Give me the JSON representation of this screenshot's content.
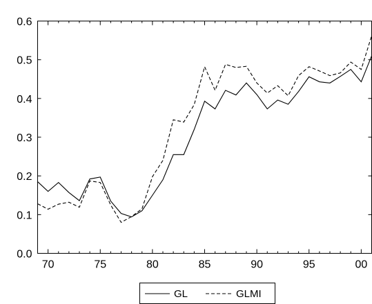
{
  "chart_data": {
    "type": "line",
    "title": "",
    "xlabel": "",
    "ylabel": "",
    "xlim": [
      1969,
      2001
    ],
    "ylim": [
      0.0,
      0.6
    ],
    "x_ticks": [
      1970,
      1975,
      1980,
      1985,
      1990,
      1995,
      2000
    ],
    "x_tick_labels": [
      "70",
      "75",
      "80",
      "85",
      "90",
      "95",
      "00"
    ],
    "y_ticks": [
      0.0,
      0.1,
      0.2,
      0.3,
      0.4,
      0.5,
      0.6
    ],
    "y_tick_labels": [
      "0.0",
      "0.1",
      "0.2",
      "0.3",
      "0.4",
      "0.5",
      "0.6"
    ],
    "grid": false,
    "legend_position": "bottom-center",
    "x": [
      1969,
      1970,
      1971,
      1972,
      1973,
      1974,
      1975,
      1976,
      1977,
      1978,
      1979,
      1980,
      1981,
      1982,
      1983,
      1984,
      1985,
      1986,
      1987,
      1988,
      1989,
      1990,
      1991,
      1992,
      1993,
      1994,
      1995,
      1996,
      1997,
      1998,
      1999,
      2000,
      2001
    ],
    "series": [
      {
        "name": "GL",
        "style": "solid",
        "color": "#000000",
        "values": [
          0.185,
          0.16,
          0.183,
          0.157,
          0.136,
          0.192,
          0.197,
          0.135,
          0.103,
          0.094,
          0.11,
          0.15,
          0.19,
          0.255,
          0.255,
          0.32,
          0.393,
          0.373,
          0.421,
          0.409,
          0.44,
          0.41,
          0.373,
          0.396,
          0.385,
          0.418,
          0.456,
          0.443,
          0.44,
          0.457,
          0.475,
          0.443,
          0.51
        ]
      },
      {
        "name": "GLMI",
        "style": "dashed",
        "color": "#000000",
        "values": [
          0.128,
          0.114,
          0.127,
          0.132,
          0.119,
          0.187,
          0.183,
          0.125,
          0.08,
          0.095,
          0.115,
          0.198,
          0.24,
          0.345,
          0.339,
          0.384,
          0.482,
          0.421,
          0.488,
          0.48,
          0.483,
          0.44,
          0.414,
          0.433,
          0.407,
          0.459,
          0.482,
          0.471,
          0.459,
          0.466,
          0.494,
          0.475,
          0.562
        ]
      }
    ]
  }
}
